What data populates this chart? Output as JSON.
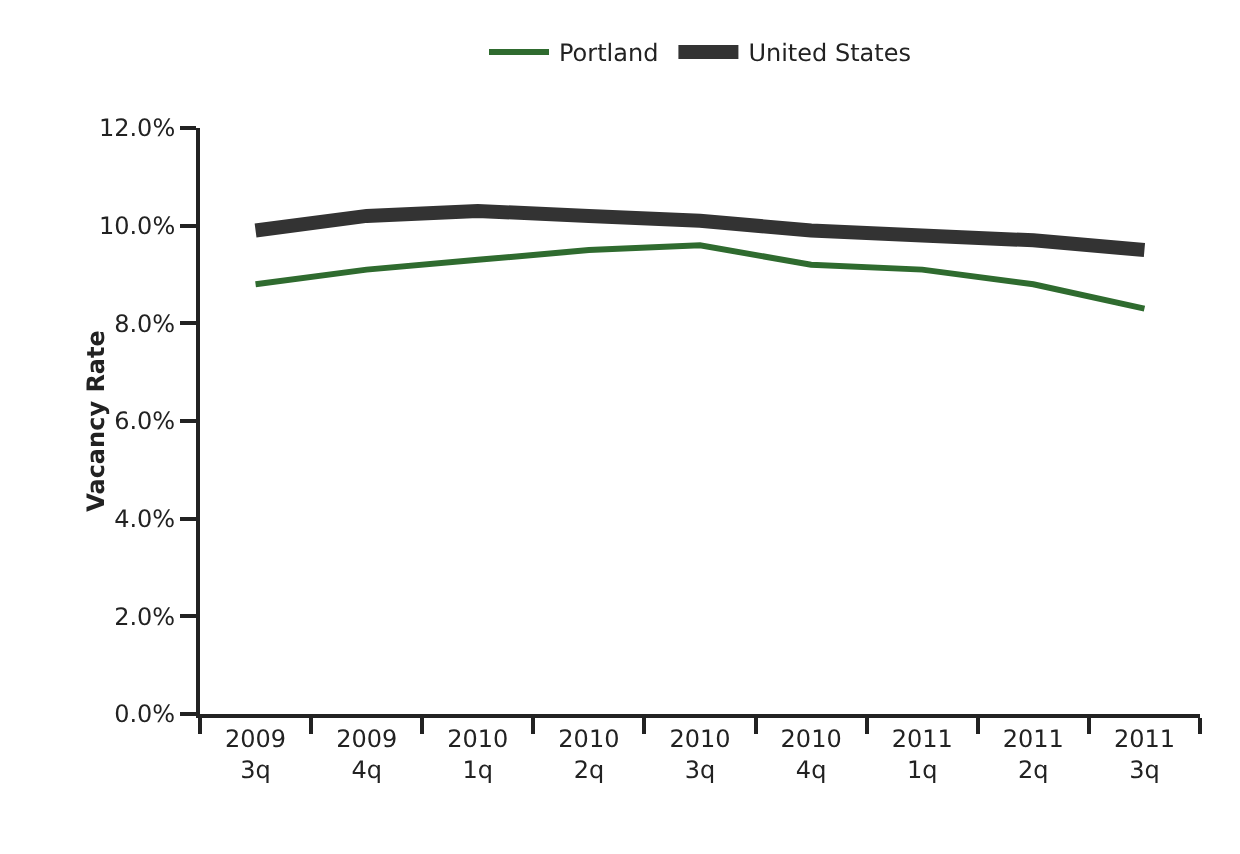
{
  "chart_data": {
    "type": "line",
    "ylabel": "Vacancy Rate",
    "categories": [
      "2009\n3q",
      "2009\n4q",
      "2010\n1q",
      "2010\n2q",
      "2010\n3q",
      "2010\n4q",
      "2011\n1q",
      "2011\n2q",
      "2011\n3q"
    ],
    "series": [
      {
        "name": "Portland",
        "color": "#2f6b2f",
        "values": [
          8.8,
          9.1,
          9.3,
          9.5,
          9.6,
          9.2,
          9.1,
          8.8,
          8.3
        ]
      },
      {
        "name": "United States",
        "color": "#333333",
        "values": [
          9.9,
          10.2,
          10.3,
          10.2,
          10.1,
          9.9,
          9.8,
          9.7,
          9.5
        ]
      }
    ],
    "ylim": [
      0,
      12
    ],
    "yticks": [
      {
        "value": 0,
        "label": "0.0%"
      },
      {
        "value": 2,
        "label": "2.0%"
      },
      {
        "value": 4,
        "label": "4.0%"
      },
      {
        "value": 6,
        "label": "6.0%"
      },
      {
        "value": 8,
        "label": "8.0%"
      },
      {
        "value": 10,
        "label": "10.0%"
      },
      {
        "value": 12,
        "label": "12.0%"
      }
    ],
    "grid": false,
    "legend": "top",
    "marker": "none",
    "line_style": "solid"
  }
}
